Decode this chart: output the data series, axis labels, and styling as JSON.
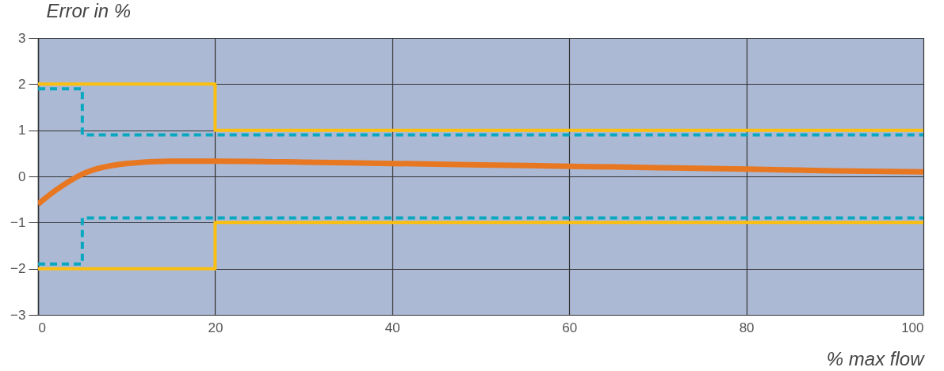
{
  "chart_data": {
    "type": "line",
    "xlabel": "% max flow",
    "ylabel": "Error in %",
    "xlim": [
      0,
      100
    ],
    "xticks": [
      0,
      20,
      40,
      60,
      80,
      100
    ],
    "ylim": [
      -3,
      3
    ],
    "yticks": [
      -3,
      -2,
      -1,
      0,
      1,
      2,
      3
    ],
    "grid": true,
    "legend": false,
    "marker": "none",
    "series": [
      {
        "type": "step",
        "color": "#fbbf10",
        "line_style": "solid",
        "x": [
          0,
          20,
          100
        ],
        "values": [
          2,
          1,
          1
        ]
      },
      {
        "type": "step",
        "color": "#fbbf10",
        "line_style": "solid",
        "x": [
          0,
          20,
          100
        ],
        "values": [
          -2,
          -1,
          -1
        ]
      },
      {
        "type": "step",
        "color": "#08a8c0",
        "line_style": "dashed",
        "x": [
          0,
          5,
          100
        ],
        "values": [
          1.9,
          0.9,
          0.9
        ]
      },
      {
        "type": "step",
        "color": "#08a8c0",
        "line_style": "dashed",
        "x": [
          0,
          5,
          100
        ],
        "values": [
          -1.9,
          -0.9,
          -0.9
        ]
      },
      {
        "type": "line",
        "color": "#e87722",
        "line_style": "solid",
        "x": [
          0,
          2,
          5,
          10,
          15,
          20,
          30,
          40,
          50,
          60,
          70,
          80,
          90,
          100
        ],
        "values": [
          -0.6,
          -0.3,
          0.05,
          0.28,
          0.33,
          0.33,
          0.31,
          0.28,
          0.25,
          0.22,
          0.19,
          0.16,
          0.12,
          0.1
        ]
      }
    ]
  }
}
